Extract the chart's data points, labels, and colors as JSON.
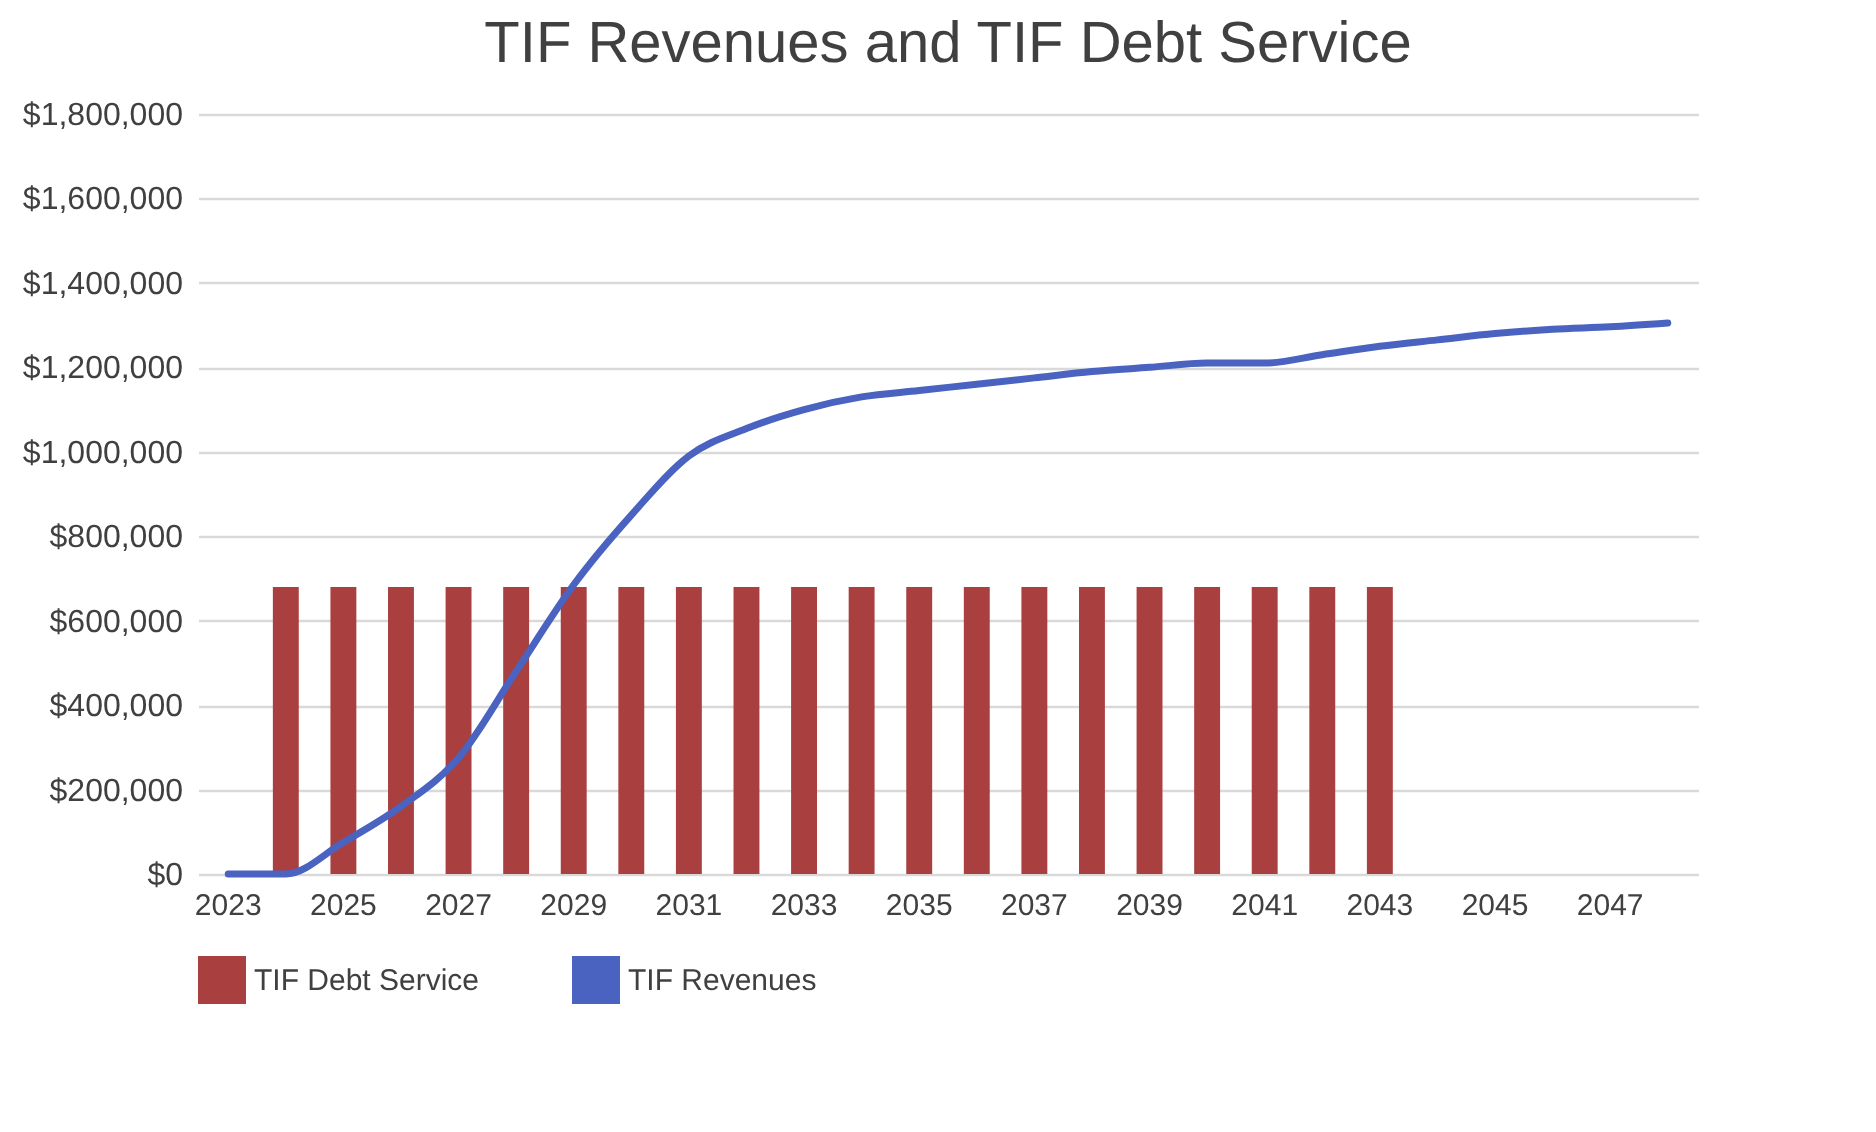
{
  "chart_data": {
    "type": "bar",
    "title": "TIF Revenues and TIF Debt Service",
    "categories": [
      "2023",
      null,
      "2025",
      null,
      "2027",
      null,
      "2029",
      null,
      "2031",
      null,
      "2033",
      null,
      "2035",
      null,
      "2037",
      null,
      "2039",
      null,
      "2041",
      null,
      "2043",
      null,
      "2045",
      null,
      "2047",
      null
    ],
    "series": [
      {
        "name": "TIF Debt Service",
        "color": "#a9403f",
        "values": [
          null,
          680000,
          680000,
          680000,
          680000,
          680000,
          680000,
          680000,
          680000,
          680000,
          680000,
          680000,
          680000,
          680000,
          680000,
          680000,
          680000,
          680000,
          680000,
          680000,
          680000,
          null,
          null,
          null,
          null,
          null
        ]
      },
      {
        "name": "TIF Revenues",
        "type": "line",
        "color": "#4a62c0",
        "values": [
          0,
          0,
          75000,
          160000,
          275000,
          480000,
          685000,
          850000,
          990000,
          1055000,
          1100000,
          1130000,
          1145000,
          1160000,
          1175000,
          1190000,
          1200000,
          1210000,
          1210000,
          1230000,
          1250000,
          1265000,
          1280000,
          1290000,
          1296000,
          1305000
        ]
      }
    ],
    "ylim": [
      0,
      1800000
    ],
    "yticks": [
      {
        "value": 0,
        "label": "$0"
      },
      {
        "value": 200000,
        "label": "$200,000"
      },
      {
        "value": 400000,
        "label": "$400,000"
      },
      {
        "value": 600000,
        "label": "$600,000"
      },
      {
        "value": 800000,
        "label": "$800,000"
      },
      {
        "value": 1000000,
        "label": "$1,000,000"
      },
      {
        "value": 1200000,
        "label": "$1,200,000"
      },
      {
        "value": 1400000,
        "label": "$1,400,000"
      },
      {
        "value": 1600000,
        "label": "$1,600,000"
      },
      {
        "value": 1800000,
        "label": "$1,800,000"
      }
    ],
    "grid": "y",
    "legend": "bottom",
    "marker": "none",
    "line_style": "solid"
  }
}
